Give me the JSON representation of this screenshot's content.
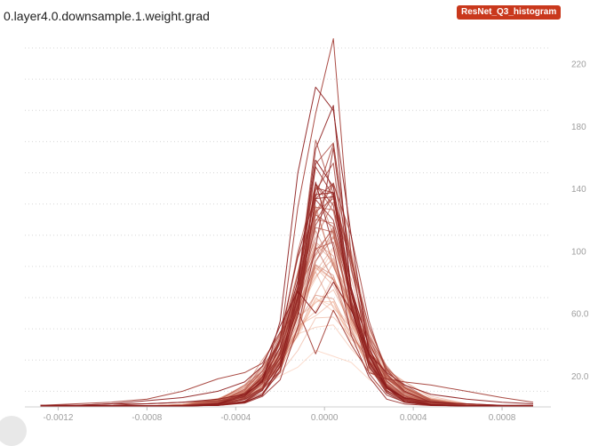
{
  "card": {
    "title": "0.layer4.0.downsample.1.weight.grad",
    "run_label": "ResNet_Q3_histogram"
  },
  "colors": {
    "badge": "#c9381c",
    "oldest_step": "#f7b08e",
    "newest_step": "#8b1a1a",
    "grid": "#d6d6d6"
  },
  "chart_data": {
    "type": "line",
    "mode": "overlay",
    "xlim": [
      -0.00135,
      0.00102
    ],
    "ylim": [
      0,
      238
    ],
    "x_ticks": [
      -0.0012,
      -0.0008,
      -0.0004,
      0.0,
      0.0004,
      0.0008
    ],
    "x_tick_labels": [
      "-0.0012",
      "-0.0008",
      "-0.0004",
      "0.0000",
      "0.0004",
      "0.0008"
    ],
    "y_ticks": [
      20,
      60,
      100,
      140,
      180,
      220
    ],
    "y_tick_labels": [
      "20.0",
      "60.0",
      "100",
      "140",
      "180",
      "220"
    ],
    "grid": true,
    "series_count": 58,
    "x": [
      -0.00128,
      -0.00112,
      -0.00096,
      -0.0008,
      -0.00064,
      -0.00048,
      -0.00036,
      -0.00028,
      -0.0002,
      -0.00012,
      -4e-05,
      4e-05,
      0.00012,
      0.0002,
      0.00028,
      0.00036,
      0.00048,
      0.00064,
      0.0008,
      0.00094
    ],
    "highlight_series": [
      {
        "values": [
          1,
          1,
          2,
          2,
          3,
          4,
          6,
          12,
          42,
          128,
          188,
          236,
          96,
          28,
          10,
          5,
          3,
          2,
          1,
          1
        ]
      },
      {
        "values": [
          1,
          1,
          1,
          2,
          3,
          5,
          8,
          16,
          55,
          150,
          205,
          190,
          110,
          34,
          12,
          6,
          3,
          2,
          1,
          1
        ]
      },
      {
        "values": [
          1,
          2,
          3,
          5,
          10,
          18,
          22,
          28,
          48,
          62,
          34,
          62,
          40,
          22,
          18,
          16,
          14,
          10,
          6,
          3
        ]
      },
      {
        "values": [
          1,
          1,
          2,
          4,
          6,
          10,
          16,
          26,
          52,
          74,
          60,
          80,
          62,
          34,
          22,
          14,
          8,
          5,
          3,
          2
        ]
      }
    ]
  }
}
